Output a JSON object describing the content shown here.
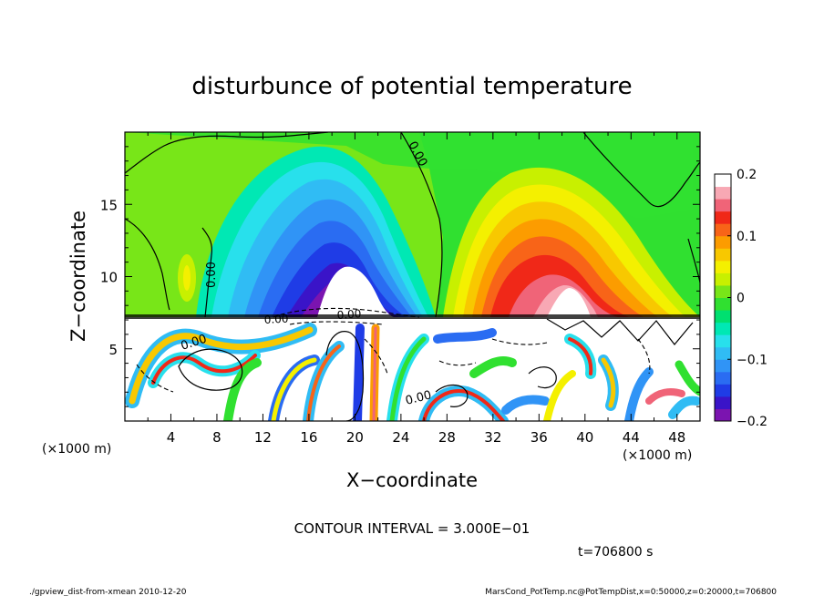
{
  "chart_data": {
    "type": "heatmap",
    "title": "disturbunce of potential temperature",
    "xlabel": "X−coordinate",
    "ylabel": "Z−coordinate",
    "x_unit_left": "(×1000 m)",
    "x_unit_right": "(×1000 m)",
    "xlim": [
      0,
      50
    ],
    "ylim": [
      0,
      20
    ],
    "x_ticks": [
      4,
      8,
      12,
      16,
      20,
      24,
      28,
      32,
      36,
      40,
      44,
      48
    ],
    "y_ticks": [
      5,
      10,
      15
    ],
    "colorbar": {
      "min": -0.2,
      "max": 0.2,
      "tick_values": [
        0.2,
        0.1,
        0,
        -0.1,
        -0.2
      ],
      "tick_labels": [
        "0.2",
        "0.1",
        "0",
        "−0.1",
        "−0.2"
      ],
      "colors": [
        "#7b14b0",
        "#3a14c8",
        "#1f3ce6",
        "#2a6cf2",
        "#3094f6",
        "#30bcf4",
        "#28e0ec",
        "#00e8b4",
        "#00e070",
        "#30e030",
        "#78e618",
        "#c8f000",
        "#f4f000",
        "#f8c800",
        "#fc9c00",
        "#f86418",
        "#f02818",
        "#f06478",
        "#f8a8b4",
        "#ffffff"
      ]
    },
    "contour_labels": [
      "0.00",
      "0.00",
      "0.00",
      "0.00",
      "0.00",
      "0.00"
    ],
    "contour_interval": "CONTOUR INTERVAL = 3.000E−01",
    "time_label": "t=706800 s"
  },
  "footer": {
    "left": "./gpview_dist-from-xmean  2010-12-20",
    "right": "MarsCond_PotTemp.nc@PotTempDist,x=0:50000,z=0:20000,t=706800"
  }
}
